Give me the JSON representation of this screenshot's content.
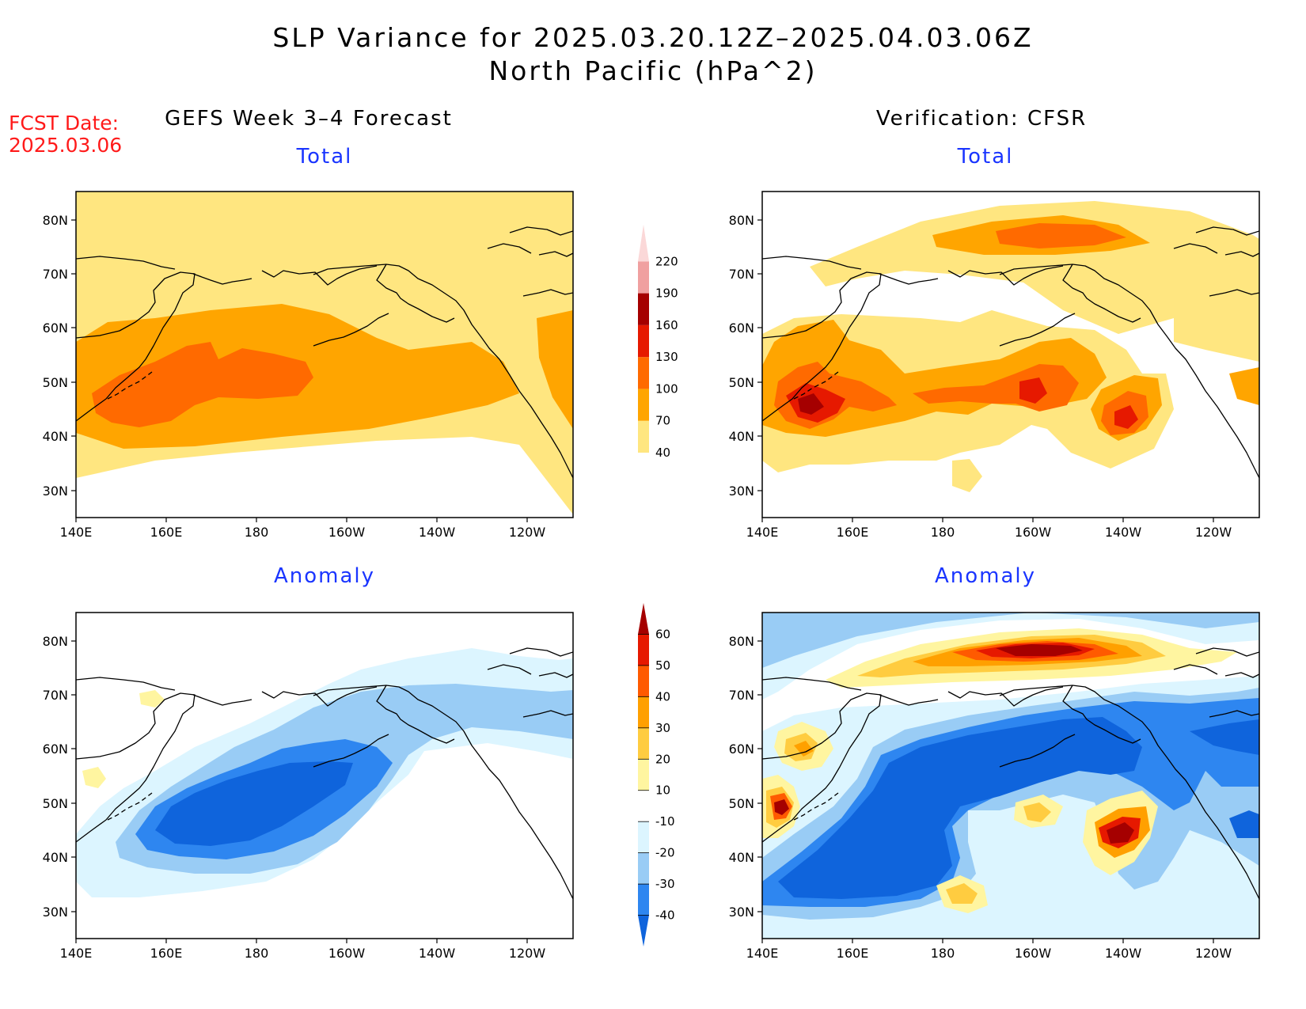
{
  "title": {
    "line1": "SLP Variance for 2025.03.20.12Z–2025.04.03.06Z",
    "line2": "North Pacific (hPa^2)"
  },
  "forecast_date": {
    "label": "FCST Date:",
    "value": "2025.03.06"
  },
  "columns": {
    "left": "GEFS Week 3–4 Forecast",
    "right": "Verification: CFSR"
  },
  "panels": [
    {
      "id": "forecast-total",
      "subtitle": "Total"
    },
    {
      "id": "verification-total",
      "subtitle": "Total"
    },
    {
      "id": "forecast-anomaly",
      "subtitle": "Anomaly"
    },
    {
      "id": "verification-anomaly",
      "subtitle": "Anomaly"
    }
  ],
  "axes": {
    "lon_labels": [
      "140E",
      "160E",
      "180",
      "160W",
      "140W",
      "120W"
    ],
    "lat_labels": [
      "30N",
      "40N",
      "50N",
      "60N",
      "70N",
      "80N"
    ]
  },
  "colorbars": {
    "total": {
      "levels": [
        "40",
        "70",
        "100",
        "130",
        "160",
        "190",
        "220"
      ],
      "colors": [
        "#ffe680",
        "#ffa500",
        "#ff6a00",
        "#e61900",
        "#a50000",
        "#f0a0a0",
        "#fbd8d8"
      ]
    },
    "anomaly": {
      "levels": [
        "-40",
        "-30",
        "-20",
        "-10",
        "10",
        "20",
        "30",
        "40",
        "50",
        "60"
      ],
      "colors": [
        "#0f64dc",
        "#2e86f0",
        "#99ccf5",
        "#dcf5ff",
        "#ffffff",
        "#fff5a0",
        "#ffcc40",
        "#ffa000",
        "#ff5a00",
        "#e61900",
        "#a50000"
      ]
    }
  }
}
